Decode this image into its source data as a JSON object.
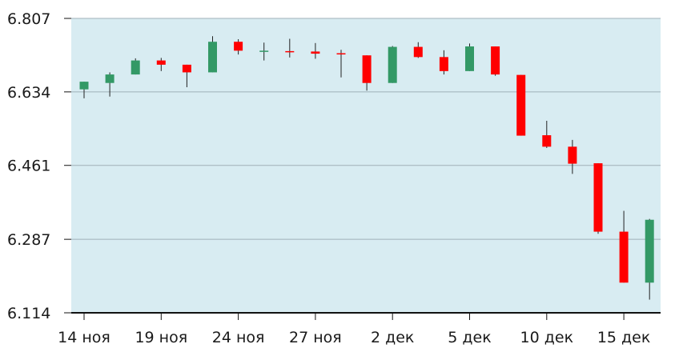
{
  "chart_data": {
    "type": "candlestick",
    "ylim": [
      6.114,
      6.807
    ],
    "y_ticks": [
      "6.807",
      "6.634",
      "6.461",
      "6.287",
      "6.114"
    ],
    "x_tick_labels": [
      {
        "label": "14 ноя",
        "index": 0
      },
      {
        "label": "19 ноя",
        "index": 3
      },
      {
        "label": "24 ноя",
        "index": 6
      },
      {
        "label": "27 ноя",
        "index": 9
      },
      {
        "label": "2 дек",
        "index": 12
      },
      {
        "label": "5 дек",
        "index": 15
      },
      {
        "label": "10 дек",
        "index": 18
      },
      {
        "label": "15 дек",
        "index": 21
      }
    ],
    "up_color": "#339966",
    "down_color": "#ff0000",
    "background": "#d8ecf2",
    "grid": true,
    "candles": [
      {
        "open": 6.64,
        "high": 6.658,
        "low": 6.619,
        "close": 6.658
      },
      {
        "open": 6.655,
        "high": 6.68,
        "low": 6.623,
        "close": 6.675
      },
      {
        "open": 6.675,
        "high": 6.713,
        "low": 6.675,
        "close": 6.708
      },
      {
        "open": 6.708,
        "high": 6.714,
        "low": 6.683,
        "close": 6.698
      },
      {
        "open": 6.698,
        "high": 6.698,
        "low": 6.645,
        "close": 6.68
      },
      {
        "open": 6.68,
        "high": 6.765,
        "low": 6.68,
        "close": 6.752
      },
      {
        "open": 6.752,
        "high": 6.758,
        "low": 6.722,
        "close": 6.731
      },
      {
        "open": 6.729,
        "high": 6.75,
        "low": 6.708,
        "close": 6.731
      },
      {
        "open": 6.73,
        "high": 6.759,
        "low": 6.715,
        "close": 6.729
      },
      {
        "open": 6.729,
        "high": 6.749,
        "low": 6.712,
        "close": 6.724
      },
      {
        "open": 6.725,
        "high": 6.733,
        "low": 6.668,
        "close": 6.723
      },
      {
        "open": 6.72,
        "high": 6.72,
        "low": 6.637,
        "close": 6.655
      },
      {
        "open": 6.655,
        "high": 6.742,
        "low": 6.655,
        "close": 6.74
      },
      {
        "open": 6.74,
        "high": 6.751,
        "low": 6.714,
        "close": 6.716
      },
      {
        "open": 6.716,
        "high": 6.732,
        "low": 6.675,
        "close": 6.683
      },
      {
        "open": 6.683,
        "high": 6.748,
        "low": 6.683,
        "close": 6.741
      },
      {
        "open": 6.741,
        "high": 6.741,
        "low": 6.672,
        "close": 6.675
      },
      {
        "open": 6.674,
        "high": 6.674,
        "low": 6.531,
        "close": 6.531
      },
      {
        "open": 6.532,
        "high": 6.566,
        "low": 6.502,
        "close": 6.505
      },
      {
        "open": 6.505,
        "high": 6.521,
        "low": 6.441,
        "close": 6.465
      },
      {
        "open": 6.466,
        "high": 6.466,
        "low": 6.3,
        "close": 6.305
      },
      {
        "open": 6.305,
        "high": 6.354,
        "low": 6.185,
        "close": 6.185
      },
      {
        "open": 6.185,
        "high": 6.335,
        "low": 6.145,
        "close": 6.333
      }
    ]
  }
}
